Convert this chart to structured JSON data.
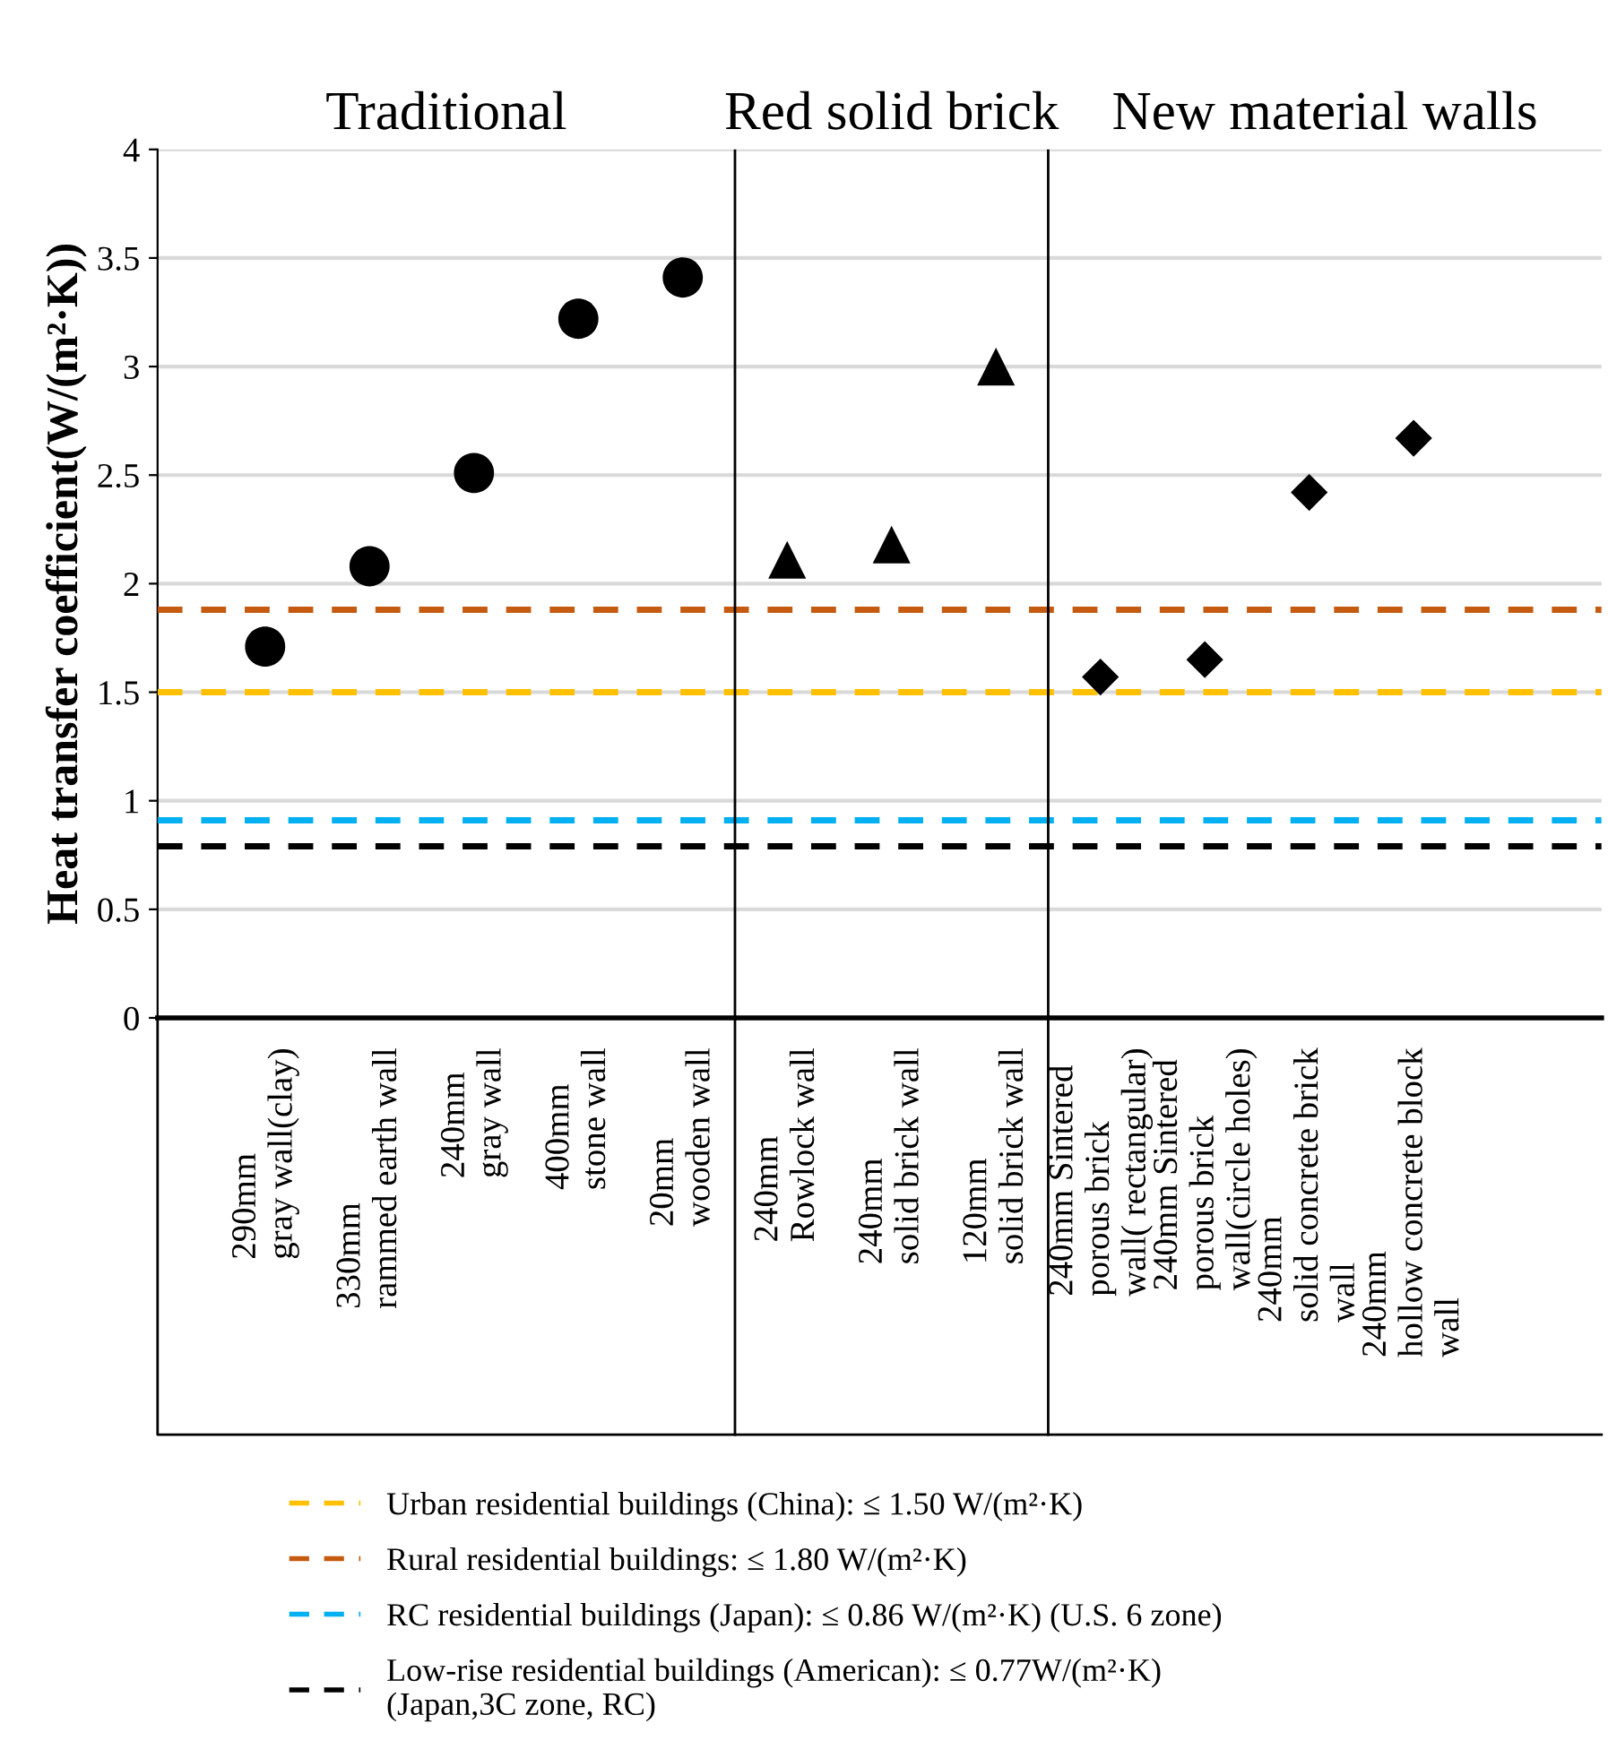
{
  "chart_data": {
    "type": "scatter",
    "ylabel": "Heat transfer coefficient(W/(m²·K))",
    "categories": [
      "290mm\ngray wall(clay)",
      "330mm\nrammed earth wall",
      "240mm\ngray wall",
      "400mm\nstone wall",
      "20mm\nwooden wall",
      "240mm\nRowlock wall",
      "240mm\nsolid brick wall",
      "120mm\nsolid brick wall",
      "240mm Sintered\nporous brick\nwall( rectangular)",
      "240mm Sintered\nporous brick\nwall(circle holes)",
      "240mm\nsolid concrete brick\nwall",
      "240mm\nhollow concrete block\nwall"
    ],
    "series": [
      {
        "color": "#000000",
        "marker": "circle",
        "values": [
          1.71,
          2.08,
          2.51,
          3.22,
          3.41,
          null,
          null,
          null,
          null,
          null,
          null,
          null
        ]
      },
      {
        "color": "#000000",
        "marker": "triangle",
        "values": [
          null,
          null,
          null,
          null,
          null,
          2.11,
          2.18,
          3.0,
          null,
          null,
          null,
          null
        ]
      },
      {
        "color": "#000000",
        "marker": "diamond",
        "values": [
          null,
          null,
          null,
          null,
          null,
          null,
          null,
          null,
          1.57,
          1.65,
          2.42,
          2.67
        ]
      }
    ],
    "ylim": [
      0,
      4
    ],
    "yticks": [
      0,
      0.5,
      1,
      1.5,
      2,
      2.5,
      3,
      3.5,
      4
    ],
    "grid": "y",
    "ref_lines": [
      {
        "axis": "y",
        "value": 1.5,
        "label": "Urban residential buildings (China): ≤ 1.50 W/(m²·K)",
        "color": "#ffc000",
        "line_style": "dashed"
      },
      {
        "axis": "y",
        "value": 1.88,
        "label": "Rural residential buildings: ≤ 1.80 W/(m²·K)",
        "color": "#c55a11",
        "line_style": "dashed"
      },
      {
        "axis": "y",
        "value": 0.91,
        "label": "RC residential buildings (Japan): ≤ 0.86 W/(m²·K) (U.S. 6 zone)",
        "color": "#00b0f0",
        "line_style": "dashed"
      },
      {
        "axis": "y",
        "value": 0.79,
        "label": "Low-rise residential buildings (American): ≤ 0.77W/(m²·K)\n(Japan,3C zone, RC)",
        "color": "#000000",
        "line_style": "dashed"
      }
    ],
    "annotations": [
      "Traditional",
      "Red solid brick",
      "New material walls"
    ],
    "legend": "bottom"
  }
}
